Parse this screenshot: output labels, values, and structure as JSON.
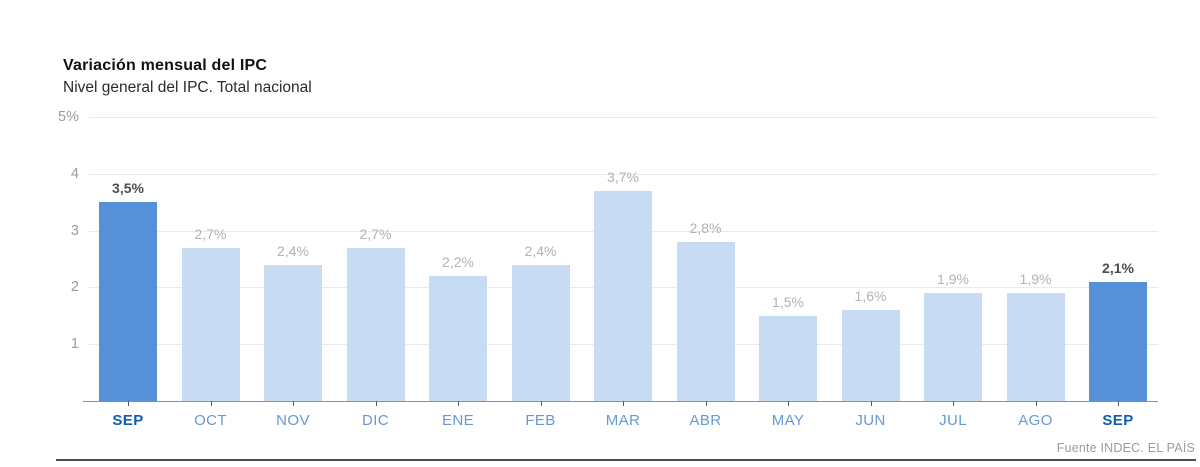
{
  "header": {
    "title": "Variación mensual del IPC",
    "subtitle": "Nivel general del IPC. Total nacional"
  },
  "chart_data": {
    "type": "bar",
    "title": "Variación mensual del IPC",
    "subtitle": "Nivel general del IPC. Total nacional",
    "categories": [
      "SEP",
      "OCT",
      "NOV",
      "DIC",
      "ENE",
      "FEB",
      "MAR",
      "ABR",
      "MAY",
      "JUN",
      "JUL",
      "AGO",
      "SEP"
    ],
    "values": [
      3.5,
      2.7,
      2.4,
      2.7,
      2.2,
      2.4,
      3.7,
      2.8,
      1.5,
      1.6,
      1.9,
      1.9,
      2.1
    ],
    "value_labels": [
      "3,5%",
      "2,7%",
      "2,4%",
      "2,7%",
      "2,2%",
      "2,4%",
      "3,7%",
      "2,8%",
      "1,5%",
      "1,6%",
      "1,9%",
      "1,9%",
      "2,1%"
    ],
    "highlight": [
      true,
      false,
      false,
      false,
      false,
      false,
      false,
      false,
      false,
      false,
      false,
      false,
      true
    ],
    "yticks": [
      {
        "value": 5,
        "label": "5%"
      },
      {
        "value": 4,
        "label": "4"
      },
      {
        "value": 3,
        "label": "3"
      },
      {
        "value": 2,
        "label": "2"
      },
      {
        "value": 1,
        "label": "1"
      }
    ],
    "ylim": [
      0,
      5
    ],
    "xlabel": "",
    "ylabel": "",
    "grid": true,
    "legend": "none",
    "colors": {
      "bar_highlight": "#5590d8",
      "bar_normal": "#c7dbf2",
      "value_label_highlight": "#4d4d4d",
      "value_label_normal": "#b2b2b2",
      "xlabel_highlight": "#0c5fae",
      "xlabel_normal": "#6699d2",
      "gridline": "#eaeaea",
      "axis_line": "#8f8f8f"
    }
  },
  "footer": {
    "source": "Fuente INDEC. EL PAÍS"
  }
}
